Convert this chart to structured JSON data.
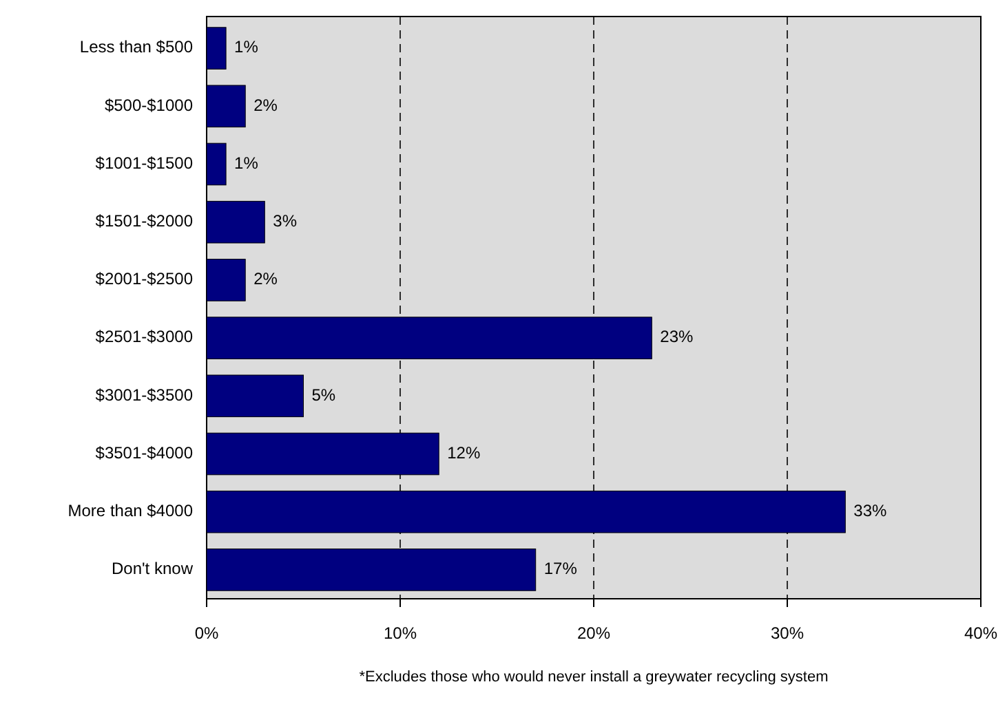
{
  "chart_data": {
    "type": "bar",
    "orientation": "horizontal",
    "categories": [
      "Less than $500",
      "$500-$1000",
      "$1001-$1500",
      "$1501-$2000",
      "$2001-$2500",
      "$2501-$3000",
      "$3001-$3500",
      "$3501-$4000",
      "More than $4000",
      "Don't know"
    ],
    "values": [
      1,
      2,
      1,
      3,
      2,
      23,
      5,
      12,
      33,
      17
    ],
    "color": "#000080",
    "data_labels": true,
    "value_labels": [
      "1%",
      "2%",
      "1%",
      "3%",
      "2%",
      "23%",
      "5%",
      "12%",
      "33%",
      "17%"
    ],
    "xlim": [
      0,
      40
    ],
    "xticks": [
      {
        "value": 0,
        "label": "0%"
      },
      {
        "value": 10,
        "label": "10%"
      },
      {
        "value": 20,
        "label": "20%"
      },
      {
        "value": 30,
        "label": "30%"
      },
      {
        "value": 40,
        "label": "40%"
      }
    ],
    "grid": "x",
    "annotations": [
      "*Excludes those who would never install a greywater recycling system"
    ]
  }
}
